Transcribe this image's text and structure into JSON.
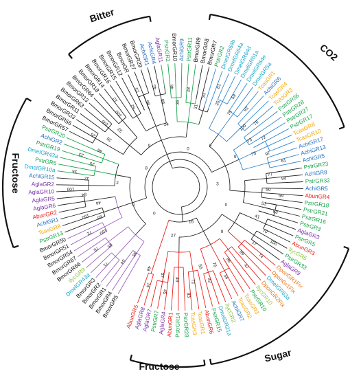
{
  "clade_labels": {
    "bitter": "Bitter",
    "co2": "CO2",
    "fructose_left": "Fructose",
    "sugar": "Sugar",
    "fructose_bottom": "Fructose"
  },
  "colors": {
    "Bmor": "#111111",
    "Abun": "#e8201b",
    "Agla": "#7b2fa8",
    "Pstr": "#1aa34a",
    "Achi": "#1f6fc1",
    "Dmel": "#19a7c9",
    "Tcas": "#f2a80f",
    "Ilyc": "#8fc63f",
    "Dpon": "#e8761b",
    "branch_bitter": "#9b5fc0",
    "branch_co2": "#e8201b",
    "branch_sugar": "#2f86cf",
    "branch_fructose": "#1aa34a",
    "branch_default": "#222222"
  },
  "leaves": [
    {
      "name": "BmorGR5",
      "sp": "Bmor"
    },
    {
      "name": "BmorGR4",
      "sp": "Bmor"
    },
    {
      "name": "BmorGR1",
      "sp": "Bmor"
    },
    {
      "name": "BmorGR2",
      "sp": "Bmor"
    },
    {
      "name": "BmorGR3",
      "sp": "Bmor"
    },
    {
      "name": "DmelGR43a",
      "sp": "Dmel"
    },
    {
      "name": "IlycGR9",
      "sp": "Ilyc"
    },
    {
      "name": "BmorGR66",
      "sp": "Bmor"
    },
    {
      "name": "BmorGR67",
      "sp": "Bmor"
    },
    {
      "name": "BmorGR54",
      "sp": "Bmor"
    },
    {
      "name": "BmorGR51",
      "sp": "Bmor"
    },
    {
      "name": "BmorGR50",
      "sp": "Bmor"
    },
    {
      "name": "PstrGR13",
      "sp": "Pstr"
    },
    {
      "name": "TcasGR8",
      "sp": "Tcas"
    },
    {
      "name": "AchiGR1",
      "sp": "Achi"
    },
    {
      "name": "AbunGR2",
      "sp": "Abun"
    },
    {
      "name": "AglaGR6",
      "sp": "Agla"
    },
    {
      "name": "AglaGR5",
      "sp": "Agla"
    },
    {
      "name": "AglaGR10",
      "sp": "Agla"
    },
    {
      "name": "AglaGR2",
      "sp": "Agla"
    },
    {
      "name": "AchiGR15",
      "sp": "Achi"
    },
    {
      "name": "DmelGR10a",
      "sp": "Dmel"
    },
    {
      "name": "PstrGR6",
      "sp": "Pstr"
    },
    {
      "name": "DmelGR43a",
      "sp": "Dmel"
    },
    {
      "name": "PstrGR19",
      "sp": "Pstr"
    },
    {
      "name": "AchiGR2",
      "sp": "Achi"
    },
    {
      "name": "PstrGR20",
      "sp": "Pstr"
    },
    {
      "name": "BmorGR57",
      "sp": "Bmor"
    },
    {
      "name": "BmorGR56",
      "sp": "Bmor"
    },
    {
      "name": "BmorGR33",
      "sp": "Bmor"
    },
    {
      "name": "BmorGR11",
      "sp": "Bmor"
    },
    {
      "name": "BmorGR63",
      "sp": "Bmor"
    },
    {
      "name": "BmorGR13",
      "sp": "Bmor"
    },
    {
      "name": "BmorGR64",
      "sp": "Bmor"
    },
    {
      "name": "BmorGR18",
      "sp": "Bmor"
    },
    {
      "name": "BmorGR14",
      "sp": "Bmor"
    },
    {
      "name": "BmorGR16",
      "sp": "Bmor"
    },
    {
      "name": "BmorGR15",
      "sp": "Bmor"
    },
    {
      "name": "BmorGR12",
      "sp": "Bmor"
    },
    {
      "name": "BmorGR",
      "sp": "Bmor"
    },
    {
      "name": "BmorGR27",
      "sp": "Bmor"
    },
    {
      "name": "BmorGR29",
      "sp": "Bmor"
    },
    {
      "name": "AchiGR1",
      "sp": "Achi"
    },
    {
      "name": "AchiGR4",
      "sp": "Achi"
    },
    {
      "name": "AglaGR11",
      "sp": "Agla"
    },
    {
      "name": "PstrGR2",
      "sp": "Pstr"
    },
    {
      "name": "BmorGR10",
      "sp": "Bmor"
    },
    {
      "name": "AchiGR9",
      "sp": "Achi"
    },
    {
      "name": "PstrGR11",
      "sp": "Pstr"
    },
    {
      "name": "BmorGR9",
      "sp": "Bmor"
    },
    {
      "name": "BmorGR8",
      "sp": "Bmor"
    },
    {
      "name": "BmorGR7",
      "sp": "Bmor"
    },
    {
      "name": "PstrGR2",
      "sp": "Pstr"
    },
    {
      "name": "DmelGR64b",
      "sp": "Dmel"
    },
    {
      "name": "DmelGR64a",
      "sp": "Dmel"
    },
    {
      "name": "DmelGR64d",
      "sp": "Dmel"
    },
    {
      "name": "DmelGR61a",
      "sp": "Dmel"
    },
    {
      "name": "DmelGR64e",
      "sp": "Dmel"
    },
    {
      "name": "DmelGR5a",
      "sp": "Dmel"
    },
    {
      "name": "TcasGR1",
      "sp": "Tcas"
    },
    {
      "name": "AchiGR6",
      "sp": "Achi"
    },
    {
      "name": "TcasGR4",
      "sp": "Tcas"
    },
    {
      "name": "TcasGR2",
      "sp": "Tcas"
    },
    {
      "name": "PstrGR36",
      "sp": "Pstr"
    },
    {
      "name": "PstrGR28",
      "sp": "Pstr"
    },
    {
      "name": "PstrGR27",
      "sp": "Pstr"
    },
    {
      "name": "PstrGR17",
      "sp": "Pstr"
    },
    {
      "name": "TcasGR8",
      "sp": "Tcas"
    },
    {
      "name": "TcasGR10",
      "sp": "Tcas"
    },
    {
      "name": "AchiGR17",
      "sp": "Achi"
    },
    {
      "name": "AchiGR13",
      "sp": "Achi"
    },
    {
      "name": "AchiGR5",
      "sp": "Achi"
    },
    {
      "name": "PstrGR23",
      "sp": "Pstr"
    },
    {
      "name": "AchiGR8",
      "sp": "Achi"
    },
    {
      "name": "PstrGR32",
      "sp": "Pstr"
    },
    {
      "name": "AchiGR5",
      "sp": "Achi"
    },
    {
      "name": "AbunGR4",
      "sp": "Abun"
    },
    {
      "name": "PstrGR18",
      "sp": "Pstr"
    },
    {
      "name": "PstrGR21",
      "sp": "Pstr"
    },
    {
      "name": "PstrGR16",
      "sp": "Pstr"
    },
    {
      "name": "PstrGR3",
      "sp": "Pstr"
    },
    {
      "name": "AglaGR3",
      "sp": "Agla"
    },
    {
      "name": "PstrGR5",
      "sp": "Pstr"
    },
    {
      "name": "AbunGR3",
      "sp": "Abun"
    },
    {
      "name": "IlycGR5",
      "sp": "Ilyc"
    },
    {
      "name": "PstrGR33",
      "sp": "Pstr"
    },
    {
      "name": "AglaGR9",
      "sp": "Agla"
    },
    {
      "name": "DponGR1Fix",
      "sp": "Dpon"
    },
    {
      "name": "DponGr1Fix",
      "sp": "Dpon"
    },
    {
      "name": "DmelGR63a",
      "sp": "Dmel"
    },
    {
      "name": "DponGR2Fix",
      "sp": "Dpon"
    },
    {
      "name": "IlycGR10",
      "sp": "Ilyc"
    },
    {
      "name": "PstrGR10",
      "sp": "Pstr"
    },
    {
      "name": "TcasGR3",
      "sp": "Tcas"
    },
    {
      "name": "TcasGR2",
      "sp": "Tcas"
    },
    {
      "name": "AchiGR7",
      "sp": "Achi"
    },
    {
      "name": "IlycGR2",
      "sp": "Ilyc"
    },
    {
      "name": "DmelGR21a",
      "sp": "Dmel"
    },
    {
      "name": "PstrGR15",
      "sp": "Pstr"
    },
    {
      "name": "AbunGR6",
      "sp": "Abun"
    },
    {
      "name": "TcasGR1",
      "sp": "Tcas"
    },
    {
      "name": "TcasGR3",
      "sp": "Tcas"
    },
    {
      "name": "PstrGR28",
      "sp": "Pstr"
    },
    {
      "name": "PstrGR14",
      "sp": "Pstr"
    },
    {
      "name": "AbunGR1",
      "sp": "Abun"
    },
    {
      "name": "AglaGR4",
      "sp": "Agla"
    },
    {
      "name": "PstrGR7",
      "sp": "Pstr"
    },
    {
      "name": "AglaGR7",
      "sp": "Agla"
    },
    {
      "name": "AglaGR8",
      "sp": "Agla"
    },
    {
      "name": "AbunGR5",
      "sp": "Abun"
    }
  ],
  "bootstrap_values": [
    "38",
    "54",
    "71",
    "95",
    "78",
    "100",
    "72",
    "85",
    "100",
    "44",
    "84",
    "100",
    "32",
    "35",
    "25",
    "23",
    "46",
    "25",
    "26",
    "100",
    "33",
    "100",
    "10",
    "52",
    "23",
    "86",
    "45",
    "85",
    "46",
    "36",
    "28",
    "31",
    "93",
    "61",
    "25",
    "59",
    "75",
    "92",
    "100",
    "76",
    "73",
    "72",
    "75",
    "97",
    "61",
    "77",
    "94",
    "50",
    "59",
    "53",
    "88",
    "41",
    "70",
    "100",
    "17",
    "74",
    "99",
    "47",
    "96",
    "34",
    "76",
    "42",
    "55",
    "72",
    "83",
    "49",
    "45",
    "57",
    "14",
    "48"
  ],
  "inner_labels": [
    "0",
    "0",
    "2",
    "8",
    "9",
    "14",
    "0",
    "0",
    "9",
    "3",
    "0",
    "9",
    "16",
    "27"
  ]
}
